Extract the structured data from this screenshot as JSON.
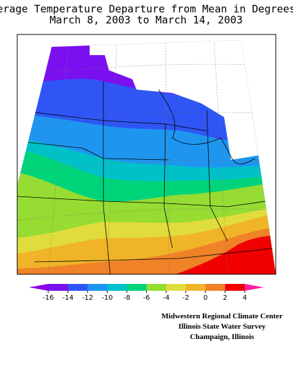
{
  "title": [
    "Average Temperature Departure from Mean in Degrees F",
    "March 8, 2003 to March 14, 2003"
  ],
  "legend": {
    "ticks": [
      -16,
      -14,
      -12,
      -10,
      -8,
      -6,
      -4,
      -2,
      0,
      2,
      4
    ],
    "colors": [
      "#8a00e6",
      "#7a10f0",
      "#2f55f5",
      "#1e96f0",
      "#00c0c8",
      "#00d47a",
      "#96dc32",
      "#e0dc3c",
      "#f0b428",
      "#f08228",
      "#f00000",
      "#ff1ea0"
    ]
  },
  "credits": [
    "Midwestern Regional Climate Center",
    "Illinois State Water Survey",
    "Champaign, Illinois"
  ]
}
